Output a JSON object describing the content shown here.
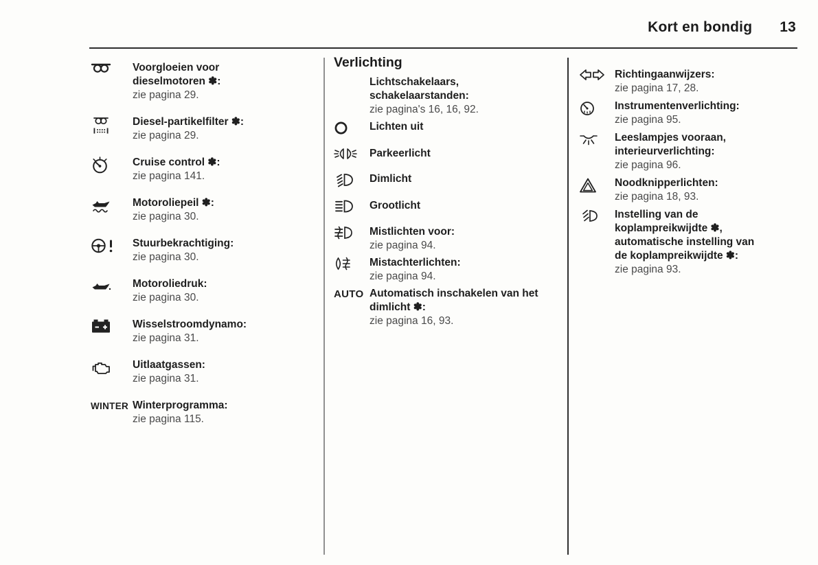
{
  "header": {
    "title": "Kort en bondig",
    "page_number": "13"
  },
  "symbols": {
    "optional_equipment_asterisk": "✽"
  },
  "columns": {
    "left": {
      "entries": [
        {
          "icon": "glow-plug-icon",
          "title_lines": [
            "Voorgloeien voor",
            "dieselmotoren ✽:"
          ],
          "ref": "zie pagina 29."
        },
        {
          "icon": "diesel-particulate-filter-icon",
          "title_lines": [
            "Diesel-partikelfilter ✽:"
          ],
          "ref": "zie pagina 29."
        },
        {
          "icon": "cruise-control-icon",
          "title_lines": [
            "Cruise control ✽:"
          ],
          "ref": "zie pagina 141."
        },
        {
          "icon": "engine-oil-level-icon",
          "title_lines": [
            "Motoroliepeil ✽:"
          ],
          "ref": "zie pagina 30."
        },
        {
          "icon": "power-steering-icon",
          "title_lines": [
            "Stuurbekrachtiging:"
          ],
          "ref": "zie pagina 30."
        },
        {
          "icon": "engine-oil-pressure-icon",
          "title_lines": [
            "Motoroliedruk:"
          ],
          "ref": "zie pagina 30."
        },
        {
          "icon": "battery-charge-icon",
          "title_lines": [
            "Wisselstroomdynamo:"
          ],
          "ref": "zie pagina 31."
        },
        {
          "icon": "engine-exhaust-icon",
          "title_lines": [
            "Uitlaatgassen:"
          ],
          "ref": "zie pagina 31."
        },
        {
          "icon_text": "WINTER",
          "title_lines": [
            "Winterprogramma:"
          ],
          "ref": "zie pagina 115."
        }
      ]
    },
    "middle": {
      "heading": "Verlichting",
      "entries": [
        {
          "title_lines": [
            "Lichtschakelaars,",
            "schakelaarstanden:"
          ],
          "ref": "zie pagina's 16, 16, 92."
        },
        {
          "icon": "lights-off-icon",
          "title_lines": [
            "Lichten uit"
          ]
        },
        {
          "icon": "parking-light-icon",
          "title_lines": [
            "Parkeerlicht"
          ]
        },
        {
          "icon": "low-beam-icon",
          "title_lines": [
            "Dimlicht"
          ]
        },
        {
          "icon": "high-beam-icon",
          "title_lines": [
            "Grootlicht"
          ]
        },
        {
          "icon": "front-fog-light-icon",
          "title_lines": [
            "Mistlichten voor:"
          ],
          "ref": "zie pagina 94."
        },
        {
          "icon": "rear-fog-light-icon",
          "title_lines": [
            "Mistachterlichten:"
          ],
          "ref": "zie pagina 94."
        },
        {
          "icon_text": "AUTO",
          "title_lines": [
            "Automatisch inschakelen van het",
            "dimlicht ✽:"
          ],
          "ref": "zie pagina 16, 93."
        }
      ]
    },
    "right": {
      "entries": [
        {
          "icon": "turn-signal-icon",
          "title_lines": [
            "Richtingaanwijzers:"
          ],
          "ref": "zie pagina 17, 28."
        },
        {
          "icon": "instrument-lighting-icon",
          "title_lines": [
            "Instrumentenverlichting:"
          ],
          "ref": "zie pagina 95."
        },
        {
          "icon": "reading-lamp-icon",
          "title_lines": [
            "Leeslampjes vooraan,",
            "interieurverlichting:"
          ],
          "ref": "zie pagina 96."
        },
        {
          "icon": "hazard-warning-icon",
          "title_lines": [
            "Noodknipperlichten:"
          ],
          "ref": "zie pagina 18, 93."
        },
        {
          "icon": "headlamp-leveling-icon",
          "title_lines": [
            "Instelling van de",
            "koplampreikwijdte ✽,",
            "automatische instelling van",
            "de koplampreikwijdte ✽:"
          ],
          "ref": "zie pagina 93."
        }
      ]
    }
  }
}
